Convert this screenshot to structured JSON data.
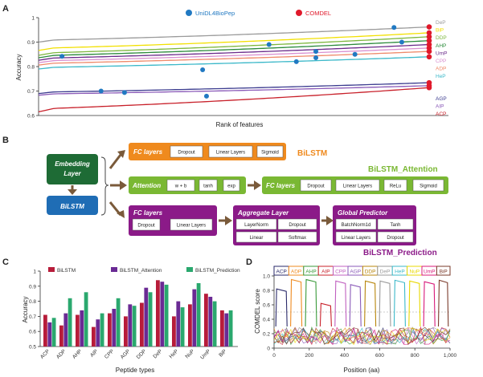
{
  "figure": {
    "panels": [
      "A",
      "B",
      "C",
      "D"
    ]
  },
  "colors": {
    "green_dark": "#1e6b35",
    "blue_dark": "#1f6db5",
    "orange": "#ef8a1e",
    "green_light": "#7ab833",
    "purple": "#8b1a88",
    "arrow": "#7a5a3a",
    "red": "#e0192b",
    "blue_dot": "#2179c2"
  },
  "panel_a": {
    "legend": {
      "unidl": "UniDL4BioPep",
      "comdel": "COMDEL"
    },
    "xlabel": "Rank of features",
    "ylabel": "Accuracy",
    "chart_data": {
      "type": "line",
      "ylim": [
        0.6,
        1.0
      ],
      "yticks": [
        0.6,
        0.7,
        0.8,
        0.9,
        1.0
      ],
      "ytick_labels": [
        "0.6",
        "0.7",
        "0.8",
        "0.9",
        "1"
      ],
      "series": [
        {
          "name": "DeP",
          "color": "#9a9a9a",
          "start": 0.9,
          "end": 0.962,
          "unidl_rank": 0.0,
          "unidl_acc": 0.0
        },
        {
          "name": "BiP",
          "color": "#f2e000",
          "start": 0.866,
          "end": 0.938,
          "unidl_rank": 0.0,
          "unidl_acc": 0.0
        },
        {
          "name": "DDP",
          "color": "#7db73d",
          "start": 0.846,
          "end": 0.922,
          "unidl_rank": 0.59,
          "unidl_acc": 0.89
        },
        {
          "name": "AHP",
          "color": "#2a8a3a",
          "start": 0.836,
          "end": 0.906,
          "unidl_rank": 0.0,
          "unidl_acc": 0.0
        },
        {
          "name": "UmP",
          "color": "#6a2a8a",
          "start": 0.826,
          "end": 0.89,
          "unidl_rank": 0.71,
          "unidl_acc": 0.862
        },
        {
          "name": "CPP",
          "color": "#d98fd0",
          "start": 0.816,
          "end": 0.876,
          "unidl_rank": 0.06,
          "unidl_acc": 0.842
        },
        {
          "name": "ADP",
          "color": "#ef8a6a",
          "start": 0.806,
          "end": 0.862,
          "unidl_rank": 0.71,
          "unidl_acc": 0.836
        },
        {
          "name": "HeP",
          "color": "#3bb8c9",
          "start": 0.79,
          "end": 0.84,
          "unidl_rank": 0.42,
          "unidl_acc": 0.787
        },
        {
          "name": "AGP",
          "color": "#3b3b8f",
          "start": 0.69,
          "end": 0.734,
          "unidl_rank": 0.0,
          "unidl_acc": 0.0
        },
        {
          "name": "AIP",
          "color": "#8a5ab8",
          "start": 0.683,
          "end": 0.722,
          "unidl_rank": 0.22,
          "unidl_acc": 0.694
        },
        {
          "name": "ACP",
          "color": "#c8202a",
          "start": 0.615,
          "end": 0.714,
          "unidl_rank": 0.43,
          "unidl_acc": 0.679
        }
      ],
      "extra_unidl_points": [
        {
          "rank": 0.91,
          "acc": 0.96
        },
        {
          "rank": 0.93,
          "acc": 0.9
        },
        {
          "rank": 0.81,
          "acc": 0.85
        },
        {
          "rank": 0.66,
          "acc": 0.82
        },
        {
          "rank": 0.16,
          "acc": 0.7
        }
      ]
    }
  },
  "panel_b": {
    "embedding": "Embedding\nLayer",
    "embedding_l1": "Embedding",
    "embedding_l2": "Layer",
    "bilstm_block": "BiLSTM",
    "row1": {
      "title": "FC layers",
      "items": [
        "Dropout",
        "Linear Layers",
        "Sigmoid"
      ],
      "model": "BiLSTM"
    },
    "row2": {
      "attention_title": "Attention",
      "attention_items": [
        "w + b",
        "tanh",
        "exp"
      ],
      "fc_title": "FC layers",
      "fc_items": [
        "Dropout",
        "Linear Layers",
        "ReLu",
        "Sigmoid"
      ],
      "model": "BiLSTM_Attention"
    },
    "row3": {
      "fc_title": "FC layers",
      "fc_items": [
        "Dropout",
        "Linear Layers"
      ],
      "agg_title": "Aggregate Layer",
      "agg_items": [
        "LayerNorm",
        "Dropout",
        "Linear",
        "Softmax"
      ],
      "gp_title": "Global Predictor",
      "gp_items": [
        "BatchNorm1d",
        "Tanh",
        "Linear Layers",
        "Dropout"
      ],
      "model": "BiLSTM_Prediction"
    }
  },
  "panel_c": {
    "xlabel": "Peptide types",
    "ylabel": "Accuracy",
    "chart_data": {
      "type": "bar",
      "categories": [
        "ACP",
        "ADP",
        "AHP",
        "AIP",
        "CPP",
        "AGP",
        "DDP",
        "DeP",
        "HeP",
        "NuP",
        "UmP",
        "BiP"
      ],
      "series": [
        {
          "name": "BiLSTM",
          "color": "#b71c3a",
          "values": [
            0.71,
            0.64,
            0.71,
            0.63,
            0.72,
            0.7,
            0.79,
            0.94,
            0.7,
            0.78,
            0.85,
            0.74
          ]
        },
        {
          "name": "BiLSTM_Attention",
          "color": "#6a2a94",
          "values": [
            0.66,
            0.72,
            0.74,
            0.68,
            0.75,
            0.78,
            0.89,
            0.93,
            0.8,
            0.88,
            0.83,
            0.72
          ]
        },
        {
          "name": "BiLSTM_Prediction",
          "color": "#2aa86e",
          "values": [
            0.69,
            0.82,
            0.86,
            0.72,
            0.82,
            0.77,
            0.86,
            0.91,
            0.76,
            0.92,
            0.8,
            0.74
          ]
        }
      ],
      "ylim": [
        0.5,
        1.0
      ],
      "yticks": [
        0.5,
        0.6,
        0.7,
        0.8,
        0.9,
        1.0
      ],
      "ytick_labels": [
        "0.5",
        "0.6",
        "0.7",
        "0.8",
        "0.9",
        "1"
      ]
    }
  },
  "panel_d": {
    "xlabel": "Position (aa)",
    "ylabel": "COMDEL score",
    "chart_data": {
      "type": "line",
      "xlim": [
        0,
        1000
      ],
      "ylim": [
        0,
        1.0
      ],
      "xticks": [
        0,
        200,
        400,
        600,
        800,
        1000
      ],
      "xtick_labels": [
        "0",
        "200",
        "400",
        "600",
        "800",
        "1,000"
      ],
      "yticks": [
        0,
        0.2,
        0.4,
        0.6,
        0.8,
        1.0
      ],
      "ytick_labels": [
        "0",
        "0.2",
        "0.4",
        "0.6",
        "0.8",
        "1.0"
      ],
      "threshold": 0.5,
      "segments": [
        {
          "name": "ACP",
          "color": "#2a2a6a",
          "start": 0,
          "end": 84
        },
        {
          "name": "ADP",
          "color": "#ef8a1e",
          "start": 84,
          "end": 168
        },
        {
          "name": "AHP",
          "color": "#3a9a3a",
          "start": 168,
          "end": 252
        },
        {
          "name": "AIP",
          "color": "#c8202a",
          "start": 252,
          "end": 336
        },
        {
          "name": "CPP",
          "color": "#c060c0",
          "start": 336,
          "end": 420
        },
        {
          "name": "AGP",
          "color": "#8a5ab8",
          "start": 420,
          "end": 504
        },
        {
          "name": "DDP",
          "color": "#b8860b",
          "start": 504,
          "end": 588
        },
        {
          "name": "DeP",
          "color": "#9a9a9a",
          "start": 588,
          "end": 672
        },
        {
          "name": "HeP",
          "color": "#3bb8c9",
          "start": 672,
          "end": 756
        },
        {
          "name": "NuP",
          "color": "#e8d800",
          "start": 756,
          "end": 840
        },
        {
          "name": "UmP",
          "color": "#d81a7a",
          "start": 840,
          "end": 924
        },
        {
          "name": "BiP",
          "color": "#7a3a2a",
          "start": 924,
          "end": 1000
        }
      ],
      "peak_heights": [
        0.82,
        0.95,
        0.95,
        0.62,
        0.93,
        0.88,
        0.93,
        0.93,
        0.94,
        0.93,
        0.92,
        0.94
      ]
    }
  }
}
